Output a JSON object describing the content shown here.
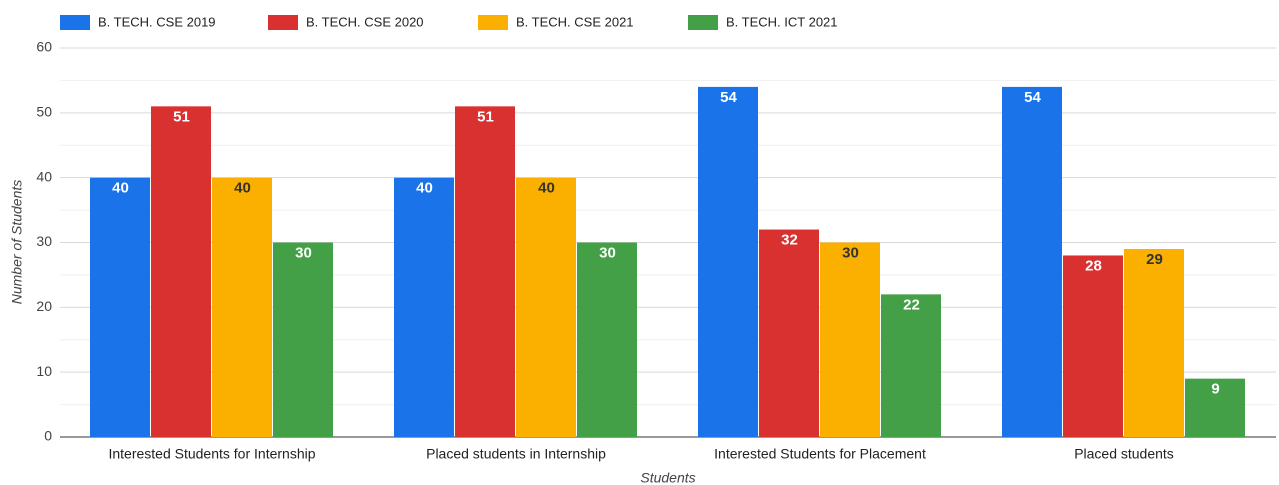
{
  "chart_data": {
    "type": "bar",
    "categories": [
      "Interested Students for Internship",
      "Placed students in Internship",
      "Interested Students for Placement",
      "Placed students"
    ],
    "series": [
      {
        "name": "B. TECH. CSE 2019",
        "color": "#1a73e8",
        "label_color": "#ffffff",
        "values": [
          40,
          40,
          54,
          54
        ]
      },
      {
        "name": "B. TECH. CSE 2020",
        "color": "#d93030",
        "label_color": "#ffffff",
        "values": [
          51,
          51,
          32,
          28
        ]
      },
      {
        "name": "B. TECH. CSE 2021",
        "color": "#fbb000",
        "label_color": "#333333",
        "values": [
          40,
          40,
          30,
          29
        ]
      },
      {
        "name": "B. TECH. ICT 2021",
        "color": "#43a047",
        "label_color": "#ffffff",
        "values": [
          30,
          30,
          22,
          9
        ]
      }
    ],
    "x_label": "Students",
    "y_label": "Number of Students",
    "ylim": [
      0,
      60
    ],
    "yticks": [
      0,
      10,
      20,
      30,
      40,
      50,
      60
    ],
    "minor_yticks": [
      5,
      15,
      25,
      35,
      45,
      55
    ],
    "grid": true,
    "legend": "top"
  }
}
